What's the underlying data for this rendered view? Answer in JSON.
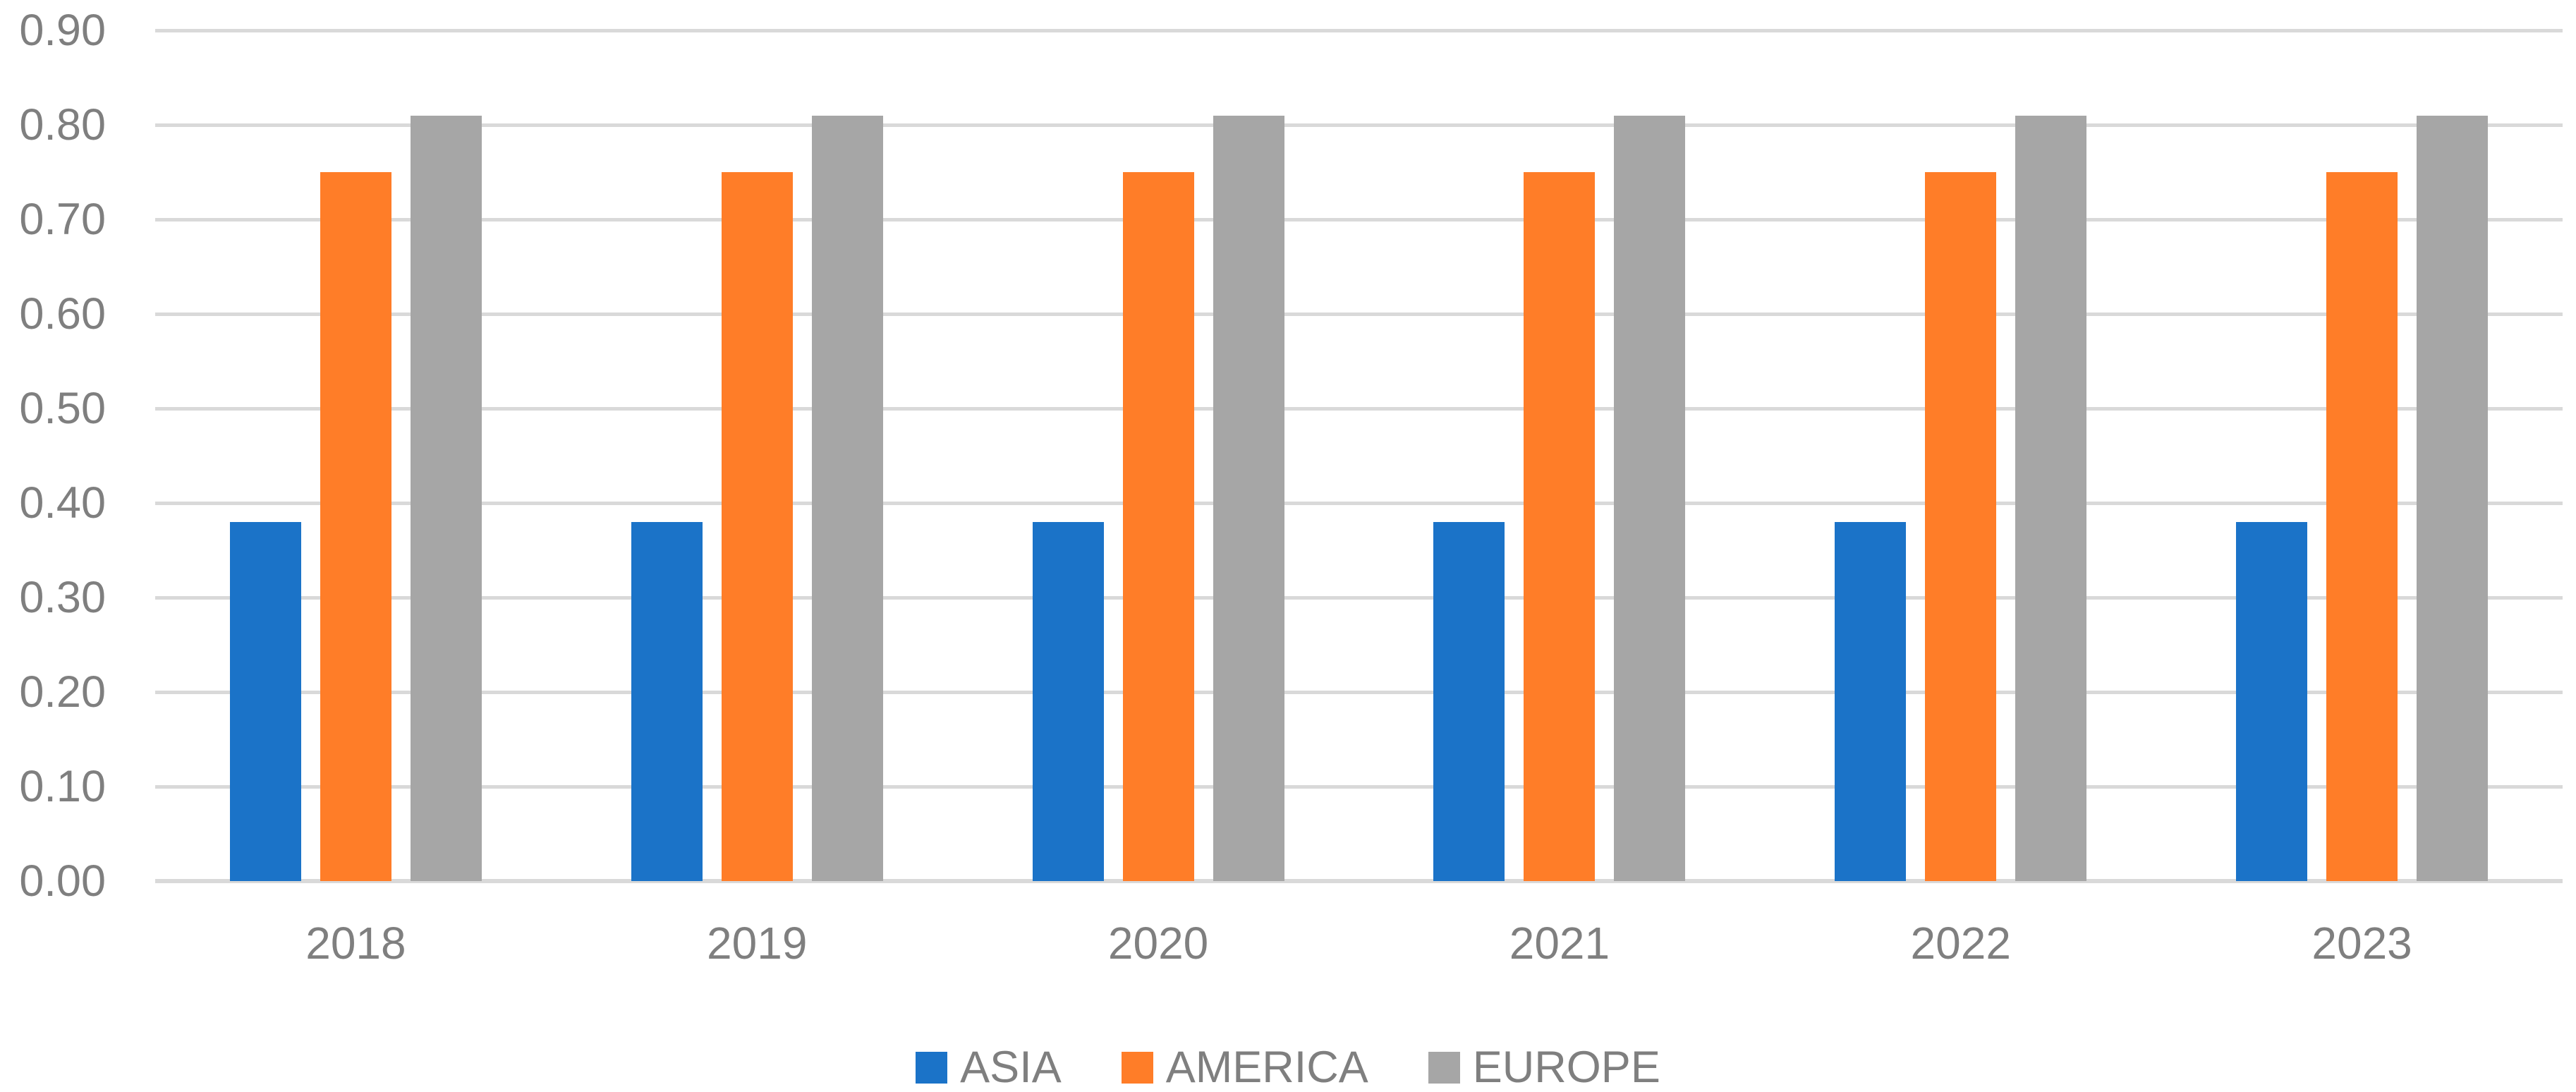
{
  "chart_data": {
    "type": "bar",
    "title": "",
    "categories": [
      "2018",
      "2019",
      "2020",
      "2021",
      "2022",
      "2023"
    ],
    "series": [
      {
        "name": "ASIA",
        "color": "#1B73C8",
        "values": [
          0.38,
          0.38,
          0.38,
          0.38,
          0.38,
          0.38
        ]
      },
      {
        "name": "AMERICA",
        "color": "#FF7D28",
        "values": [
          0.75,
          0.75,
          0.75,
          0.75,
          0.75,
          0.75
        ]
      },
      {
        "name": "EUROPE",
        "color": "#A6A6A6",
        "values": [
          0.81,
          0.81,
          0.81,
          0.81,
          0.81,
          0.81
        ]
      }
    ],
    "xlabel": "",
    "ylabel": "",
    "ylim": [
      0,
      0.9
    ],
    "y_tick_step": 0.1,
    "y_tick_labels": [
      "0.00",
      "0.10",
      "0.20",
      "0.30",
      "0.40",
      "0.50",
      "0.60",
      "0.70",
      "0.80",
      "0.90"
    ],
    "grid": true,
    "gridline_color": "#D9D9D9",
    "axis_text_color": "#7F7F7F",
    "background_color": "#FFFFFF",
    "legend_position": "bottom"
  }
}
